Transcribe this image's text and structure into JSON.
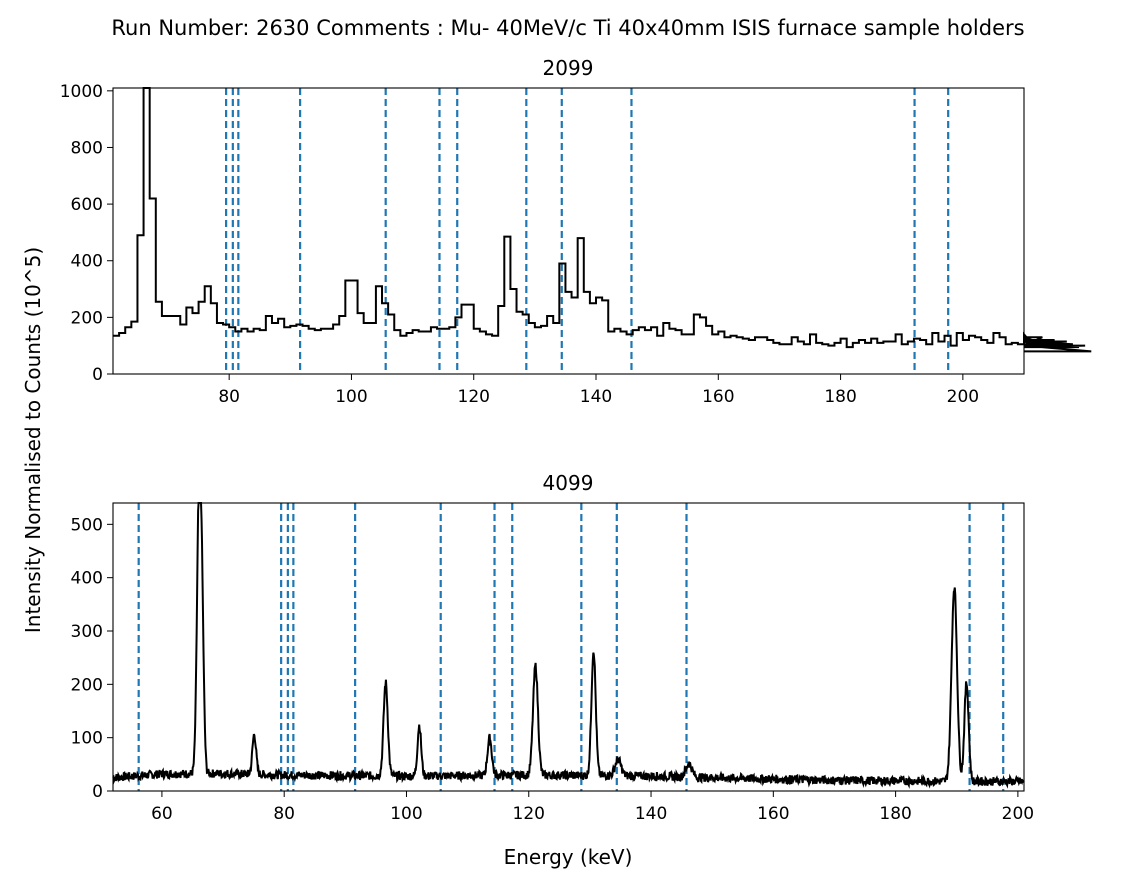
{
  "figure": {
    "suptitle": "Run Number: 2630  Comments : Mu- 40MeV/c Ti 40x40mm ISIS furnace sample holders",
    "shared_ylabel": "Intensity Normalised to Counts (10^5)",
    "shared_xlabel": "Energy (keV)"
  },
  "chart_data": [
    {
      "type": "line",
      "step": true,
      "title": "2099",
      "xlabel": "",
      "ylabel": "",
      "xlim": [
        61,
        210
      ],
      "ylim": [
        0,
        1010
      ],
      "grid": false,
      "xticks": [
        80,
        100,
        120,
        140,
        160,
        180,
        200
      ],
      "xtick_labels": [
        "80",
        "100",
        "120",
        "140",
        "160",
        "180",
        "200"
      ],
      "yticks": [
        0,
        200,
        400,
        600,
        800,
        1000
      ],
      "ytick_labels": [
        "0",
        "200",
        "400",
        "600",
        "800",
        "1000"
      ],
      "series": [
        {
          "color": "#000000",
          "bin_start": 61,
          "bin_width": 1,
          "values": [
            135,
            145,
            165,
            185,
            490,
            1010,
            620,
            255,
            205,
            205,
            205,
            175,
            235,
            215,
            255,
            310,
            250,
            180,
            175,
            165,
            150,
            160,
            150,
            160,
            155,
            205,
            180,
            195,
            165,
            170,
            175,
            170,
            160,
            155,
            160,
            160,
            175,
            205,
            330,
            330,
            215,
            180,
            180,
            310,
            250,
            210,
            155,
            135,
            145,
            155,
            150,
            150,
            165,
            160,
            160,
            165,
            200,
            245,
            245,
            160,
            150,
            140,
            135,
            240,
            485,
            300,
            220,
            210,
            180,
            165,
            170,
            205,
            180,
            390,
            290,
            270,
            480,
            290,
            250,
            270,
            260,
            150,
            160,
            150,
            140,
            155,
            165,
            155,
            165,
            135,
            180,
            160,
            155,
            140,
            140,
            210,
            200,
            170,
            140,
            150,
            130,
            135,
            130,
            125,
            120,
            130,
            130,
            120,
            110,
            105,
            105,
            130,
            115,
            105,
            140,
            110,
            105,
            100,
            110,
            125,
            95,
            110,
            120,
            110,
            125,
            110,
            115,
            115,
            140,
            105,
            115,
            125,
            120,
            105,
            145,
            115,
            135,
            100,
            145,
            120,
            135,
            130,
            120,
            110,
            145,
            130,
            105,
            110,
            105,
            140,
            115,
            100,
            130,
            100,
            120,
            105,
            115,
            105,
            95,
            100,
            80
          ],
          "values_note_removed": null
        }
      ],
      "vlines": [
        79.5,
        80.6,
        81.5,
        91.6,
        105.6,
        114.4,
        117.3,
        128.6,
        134.4,
        145.8,
        192.1,
        197.6
      ],
      "vline_color": "#1f77b4"
    },
    {
      "type": "line",
      "step": false,
      "title": "4099",
      "xlabel": "",
      "ylabel": "",
      "xlim": [
        52,
        201
      ],
      "ylim": [
        0,
        540
      ],
      "grid": false,
      "xticks": [
        60,
        80,
        100,
        120,
        140,
        160,
        180,
        200
      ],
      "xtick_labels": [
        "60",
        "80",
        "100",
        "120",
        "140",
        "160",
        "180",
        "200"
      ],
      "yticks": [
        0,
        100,
        200,
        300,
        400,
        500
      ],
      "ytick_labels": [
        "0",
        "100",
        "200",
        "300",
        "400",
        "500"
      ],
      "series": [
        {
          "color": "#000000",
          "background": [
            [
              52,
              25
            ],
            [
              60,
              32
            ],
            [
              70,
              33
            ],
            [
              80,
              30
            ],
            [
              100,
              28
            ],
            [
              120,
              30
            ],
            [
              140,
              28
            ],
            [
              150,
              25
            ],
            [
              170,
              20
            ],
            [
              190,
              18
            ],
            [
              201,
              18
            ]
          ],
          "noise_amplitude": 16,
          "peaks": [
            {
              "x": 66.1,
              "height": 540,
              "width": 0.35
            },
            {
              "x": 66.6,
              "height": 200,
              "width": 0.3
            },
            {
              "x": 75.1,
              "height": 75,
              "width": 0.3
            },
            {
              "x": 96.6,
              "height": 175,
              "width": 0.35
            },
            {
              "x": 102.1,
              "height": 95,
              "width": 0.3
            },
            {
              "x": 113.6,
              "height": 70,
              "width": 0.35
            },
            {
              "x": 121.1,
              "height": 205,
              "width": 0.4
            },
            {
              "x": 130.6,
              "height": 235,
              "width": 0.35
            },
            {
              "x": 134.6,
              "height": 30,
              "width": 0.5
            },
            {
              "x": 146.2,
              "height": 25,
              "width": 0.5
            },
            {
              "x": 189.6,
              "height": 365,
              "width": 0.45
            },
            {
              "x": 191.6,
              "height": 185,
              "width": 0.35
            }
          ]
        }
      ],
      "vlines": [
        56.2,
        79.5,
        80.6,
        81.5,
        91.6,
        105.6,
        114.4,
        117.3,
        128.6,
        134.4,
        145.8,
        192.1,
        197.6
      ],
      "vline_color": "#1f77b4"
    }
  ]
}
